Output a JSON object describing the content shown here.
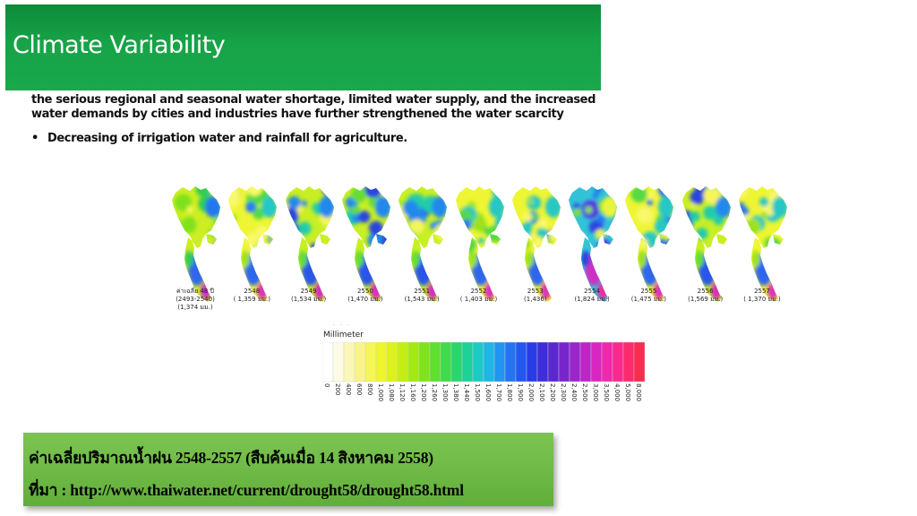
{
  "slide": {
    "title": "Climate Variability",
    "paragraph": "the serious regional and seasonal water shortage, limited water supply, and the increased water demands by cities and industries have further strengthened the water scarcity",
    "bullet_marker": "•",
    "bullet": "Decreasing of irrigation water and rainfall for agriculture."
  },
  "maps": [
    {
      "line1": "ค่าเฉลี่ย 48 ปี",
      "line2": "(2493-2540)",
      "line3": "(1,374 มม.)",
      "palette": "avg"
    },
    {
      "line1": "2548",
      "line2": "( 1,359 มม.)",
      "line3": "",
      "palette": "yellow"
    },
    {
      "line1": "2549",
      "line2": "(1,534 มม.)",
      "line3": "",
      "palette": "mixed"
    },
    {
      "line1": "2550",
      "line2": "(1,470 มม.)",
      "line3": "",
      "palette": "mixed"
    },
    {
      "line1": "2551",
      "line2": "(1,543 มม.)",
      "line3": "",
      "palette": "mixed"
    },
    {
      "line1": "2552",
      "line2": "( 1,403 มม.)",
      "line3": "",
      "palette": "yellow"
    },
    {
      "line1": "2553",
      "line2": "(1,436)",
      "line3": "",
      "palette": "yellow"
    },
    {
      "line1": "2554",
      "line2": "(1,824 มม.)",
      "line3": "",
      "palette": "wet"
    },
    {
      "line1": "2555",
      "line2": "(1,475 มม.)",
      "line3": "",
      "palette": "yellow"
    },
    {
      "line1": "2556",
      "line2": "(1,569 มม.)",
      "line3": "",
      "palette": "mixed"
    },
    {
      "line1": "2557",
      "line2": "( 1,370 มม.)",
      "line3": "",
      "palette": "yellow"
    }
  ],
  "legend": {
    "title": "Millimeter",
    "ticks": [
      "0",
      "200",
      "400",
      "600",
      "800",
      "1,000",
      "1,080",
      "1,120",
      "1,160",
      "1,200",
      "1,260",
      "1,300",
      "1,380",
      "1,440",
      "1,500",
      "1,600",
      "1,700",
      "1,800",
      "1,900",
      "2,000",
      "2,100",
      "2,200",
      "2,300",
      "2,400",
      "2,500",
      "3,000",
      "3,500",
      "4,000",
      "5,000",
      "8,000"
    ],
    "colors": [
      "#ffffff",
      "#fdfbe3",
      "#fbf7b8",
      "#f8f48a",
      "#f5f556",
      "#eef52c",
      "#dcf21a",
      "#c2ee12",
      "#a3ea14",
      "#7fe41c",
      "#5ee02e",
      "#3fdb4a",
      "#28d66e",
      "#1dd199",
      "#1acbc4",
      "#1cb7e4",
      "#2095f2",
      "#2374f4",
      "#2456f1",
      "#2a3ce8",
      "#3d2ed9",
      "#5a28d0",
      "#7826cc",
      "#9a25ca",
      "#bc25c6",
      "#d926c0",
      "#ef28ad",
      "#f92a8e",
      "#fb2b6e",
      "#f82c4f"
    ]
  },
  "source": {
    "line1": "ค่าเฉลี่ยปริมาณน้ำฝน 2548-2557 (สืบค้นเมื่อ 14 สิงหาคม 2558)",
    "line2": "ที่มา : http://www.thaiwater.net/current/drought58/drought58.html"
  }
}
